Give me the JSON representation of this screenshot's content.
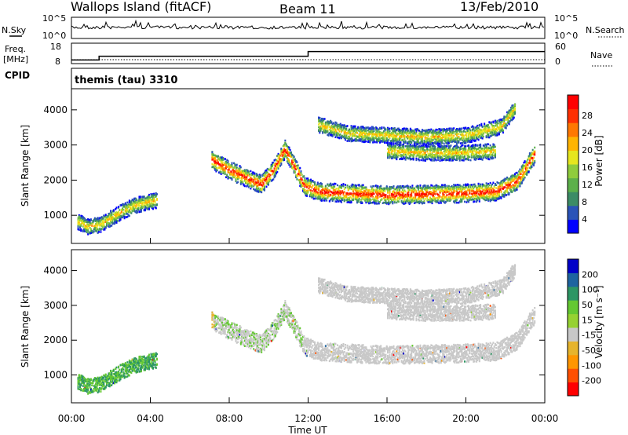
{
  "chart_data": [
    {
      "type": "line",
      "header": {
        "station": "Wallops Island (fitACF)",
        "beam": "Beam 11",
        "date": "13/Feb/2010"
      },
      "left_label": "N.Sky",
      "right_label": "N.Search",
      "y_left_ticks": [
        "10^5",
        "10^0"
      ],
      "y_right_ticks": [
        "10^5",
        "10^0"
      ],
      "x_range_hours": [
        0,
        24
      ]
    },
    {
      "type": "line",
      "left_label_1": "Freq.",
      "left_label_2": "[MHz]",
      "right_label": "Nave",
      "y_left_ticks": [
        "18",
        "8"
      ],
      "y_right_ticks": [
        "60",
        "0"
      ],
      "series": [
        {
          "x": [
            0,
            1.4,
            1.4,
            12.0,
            12.0,
            24.0
          ],
          "y": [
            9.5,
            9.5,
            11.5,
            11.5,
            14.0,
            14.0
          ]
        }
      ]
    },
    {
      "type": "text",
      "label": "CPID",
      "value": "themis (tau) 3310"
    },
    {
      "type": "heatmap",
      "ylabel": "Slant Range [km]",
      "yticks": [
        "1000",
        "2000",
        "3000",
        "4000"
      ],
      "ylim": [
        200,
        4600
      ],
      "colorbar_label": "Power [dB]",
      "colorbar_ticks": [
        "4",
        "8",
        "12",
        "16",
        "20",
        "24",
        "28"
      ],
      "colorscale": [
        "#0000ff",
        "#2a53b8",
        "#3c8c66",
        "#5cb04a",
        "#8fcc3c",
        "#e6e61e",
        "#ffb400",
        "#ff7800",
        "#ff3000",
        "#ff0000"
      ],
      "echo_bands_km": [
        {
          "x": [
            0.3,
            0.8,
            1.4,
            2.0,
            2.6,
            3.2,
            3.8,
            4.3
          ],
          "y": [
            850,
            700,
            750,
            950,
            1150,
            1300,
            1400,
            1450
          ]
        },
        {
          "x": [
            7.1,
            8.0,
            9.0,
            9.6,
            10.2,
            10.8,
            11.2,
            11.8,
            12.5,
            14,
            16,
            18,
            20,
            21.5,
            22.6,
            23.5
          ],
          "y": [
            2600,
            2300,
            2050,
            1900,
            2300,
            2900,
            2500,
            1850,
            1700,
            1650,
            1600,
            1620,
            1650,
            1700,
            2000,
            2800
          ]
        },
        {
          "x": [
            12.5,
            14,
            16,
            18,
            20,
            21.8,
            22.5
          ],
          "y": [
            3600,
            3350,
            3300,
            3250,
            3300,
            3550,
            4100
          ]
        },
        {
          "x": [
            16,
            18,
            20,
            21.5
          ],
          "y": [
            2850,
            2800,
            2800,
            2850
          ]
        }
      ]
    },
    {
      "type": "heatmap",
      "ylabel": "Slant Range [km]",
      "yticks": [
        "1000",
        "2000",
        "3000",
        "4000"
      ],
      "ylim": [
        200,
        4600
      ],
      "xlabel": "Time UT",
      "xticks": [
        "00:00",
        "04:00",
        "08:00",
        "12:00",
        "16:00",
        "20:00",
        "00:00"
      ],
      "colorbar_label": "Velocity [m s⁻¹]",
      "colorbar_ticks": [
        "200",
        "100",
        "50",
        "15",
        "-15",
        "-50",
        "-100",
        "-200"
      ],
      "colorscale": [
        "#0000c8",
        "#1e64a0",
        "#2d9664",
        "#64c832",
        "#96d232",
        "#c8c8c8",
        "#e6b42d",
        "#ff9600",
        "#ff5000",
        "#ff0000"
      ]
    }
  ]
}
